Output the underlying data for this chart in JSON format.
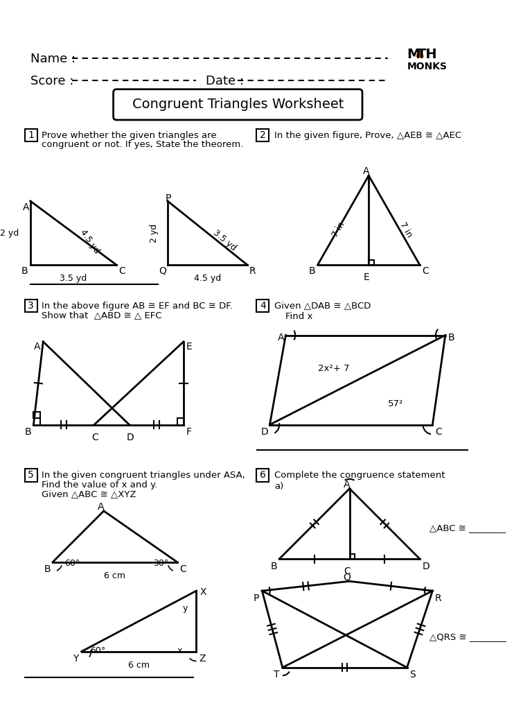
{
  "bg_color": "#ffffff",
  "title": "Congruent Triangles Worksheet",
  "name_label": "Name :",
  "score_label": "Score :",
  "date_label": "Date :",
  "math_monks_text": [
    "M▲TH",
    "MONKS"
  ],
  "q1_text": [
    "1",
    "Prove whether the given triangles are",
    "congruent or not. If yes, State the theorem."
  ],
  "q2_text": [
    "2",
    "In the given figure, Prove, △AEB ≅ △AEC"
  ],
  "q3_text": [
    "3",
    "In the above figure AB ≅ EF and BC ≅ DF.",
    "Show that  △ABD ≅ △ EFC"
  ],
  "q4_text": [
    "4",
    "Given △DAB ≅ △BCD",
    "Find x"
  ],
  "q5_text": [
    "5",
    "In the given congruent triangles under ASA,",
    "Find the value of x and y.",
    "Given △ABC ≅ △XYZ"
  ],
  "q6_text": [
    "6",
    "Complete the congruence statement"
  ],
  "q6a_text": "a)",
  "q6_abc": "△ABC ≅ ________",
  "q6_qrs": "△QRS ≅ ________",
  "orange": "#E8540A",
  "black": "#000000"
}
